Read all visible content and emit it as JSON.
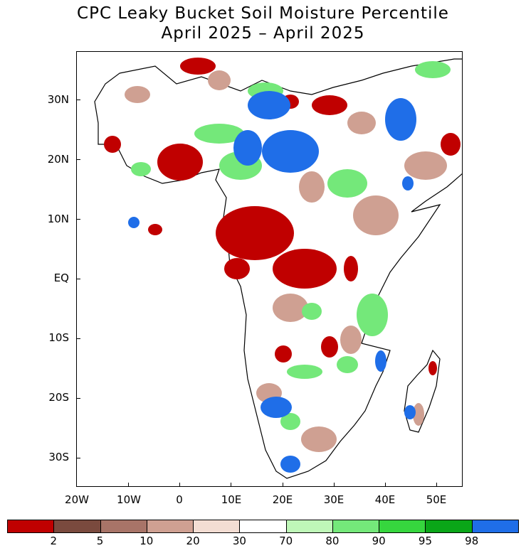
{
  "title_line1": "CPC Leaky Bucket Soil Moisture Percentile",
  "title_line2": "April 2025 – April 2025",
  "lat_labels": [
    "30N",
    "20N",
    "10N",
    "EQ",
    "10S",
    "20S",
    "30S"
  ],
  "lon_labels": [
    "20W",
    "10W",
    "0",
    "10E",
    "20E",
    "30E",
    "40E",
    "50E"
  ],
  "colorbar": {
    "colors": [
      "#c00000",
      "#7a4a3e",
      "#a87468",
      "#cfa092",
      "#f3ddd3",
      "#ffffff",
      "#bff7b8",
      "#74e87a",
      "#36d63e",
      "#0aa618",
      "#1f6ee8"
    ],
    "labels": [
      "2",
      "5",
      "10",
      "20",
      "30",
      "70",
      "80",
      "90",
      "95",
      "98"
    ]
  }
}
